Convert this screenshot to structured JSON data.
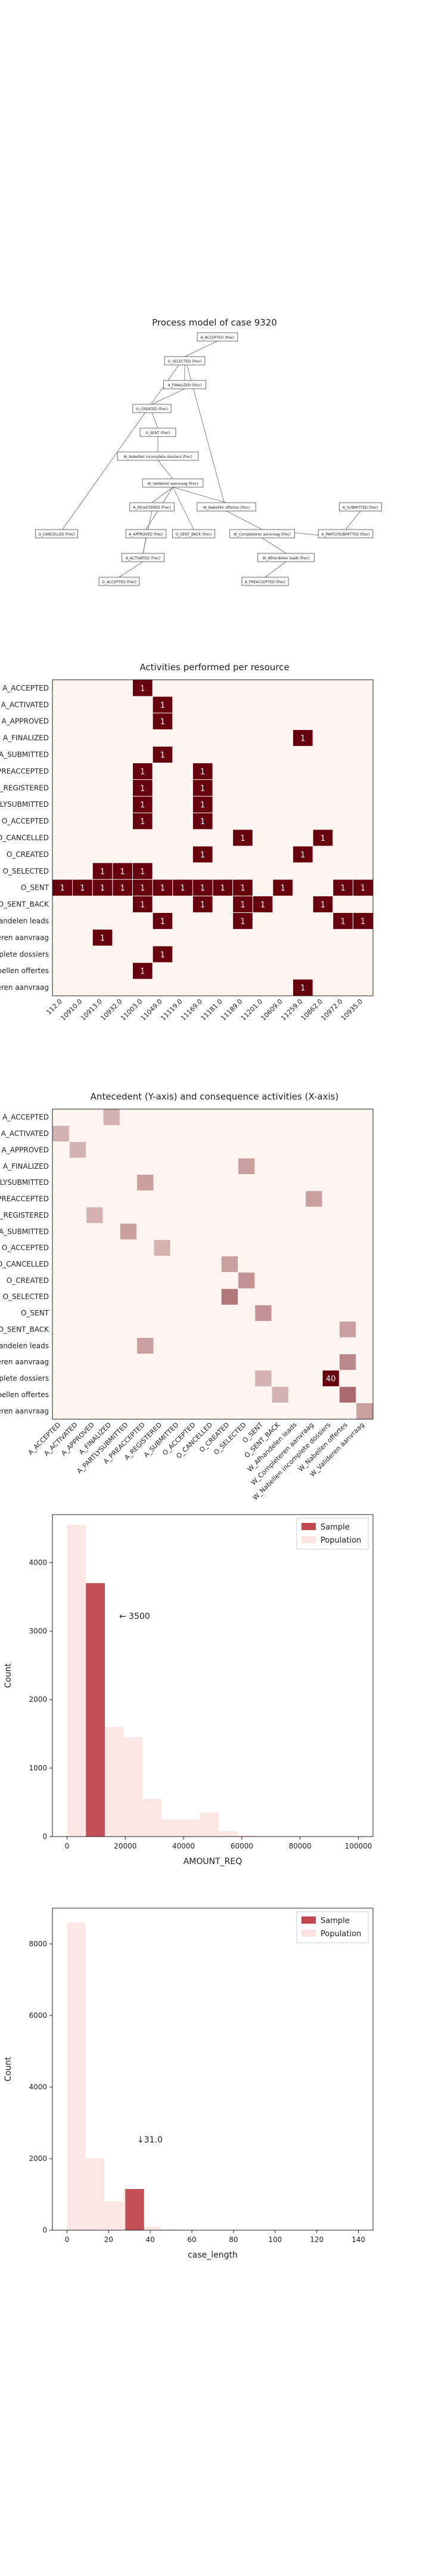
{
  "process_model": {
    "title": "Process model of case 9320",
    "nodes": [
      {
        "id": "accepted",
        "label": "A_ACCEPTED (frec)"
      },
      {
        "id": "selected",
        "label": "O_SELECTED (frec)"
      },
      {
        "id": "finalized",
        "label": "A_FINALIZED (frec)"
      },
      {
        "id": "created",
        "label": "O_CREATED (frec)"
      },
      {
        "id": "sent",
        "label": "O_SENT (frec)"
      },
      {
        "id": "wvo",
        "label": "W_Nabellen incomplete dossiers (frec)"
      },
      {
        "id": "wna",
        "label": "W_Valideren aanvraag (frec)"
      },
      {
        "id": "registered",
        "label": "A_REGISTERED (frec)"
      },
      {
        "id": "wno",
        "label": "W_Nabellen offertes (frec)"
      },
      {
        "id": "submitted",
        "label": "A_SUBMITTED (frec)"
      },
      {
        "id": "cancelled",
        "label": "O_CANCELLED (frec)"
      },
      {
        "id": "approved",
        "label": "A_APPROVED (frec)"
      },
      {
        "id": "sentback",
        "label": "O_SENT_BACK (frec)"
      },
      {
        "id": "wcompl",
        "label": "W_Completeren aanvraag (frec)"
      },
      {
        "id": "partly",
        "label": "A_PARTLYSUBMITTED (frec)"
      },
      {
        "id": "activated",
        "label": "A_ACTIVATED (frec)"
      },
      {
        "id": "wafh",
        "label": "W_Afhandelen leads (frec)"
      },
      {
        "id": "oacc",
        "label": "O_ACCEPTED (frec)"
      },
      {
        "id": "preaccepted",
        "label": "A_PREACCEPTED (frec)"
      }
    ]
  },
  "heatmap_resources": {
    "title": "Activities performed per resource",
    "chart_data": {
      "type": "heatmap",
      "title": "Activities performed per resource",
      "rows": [
        "A_ACCEPTED",
        "A_ACTIVATED",
        "A_APPROVED",
        "A_FINALIZED",
        "A_SUBMITTED",
        "A_PREACCEPTED",
        "A_REGISTERED",
        "A_PARTLYSUBMITTED",
        "O_ACCEPTED",
        "O_CANCELLED",
        "O_CREATED",
        "O_SELECTED",
        "O_SENT",
        "O_SENT_BACK",
        "W_Afhandelen leads",
        "W_Completeren aanvraag",
        "W_Nabellen incomplete dossiers",
        "W_Nabellen offertes",
        "W_Valideren aanvraag"
      ],
      "columns": [
        "112.0",
        "10910.0",
        "10913.0",
        "10932.0",
        "11003.0",
        "11049.0",
        "11119.0",
        "11169.0",
        "11181.0",
        "11189.0",
        "11201.0",
        "10609.0",
        "11259.0",
        "10862.0",
        "10972.0",
        "10935.0"
      ],
      "cells": [
        [
          0,
          4,
          1
        ],
        [
          1,
          5,
          1
        ],
        [
          2,
          5,
          1
        ],
        [
          3,
          12,
          1
        ],
        [
          4,
          5,
          1
        ],
        [
          5,
          4,
          1
        ],
        [
          5,
          7,
          1
        ],
        [
          6,
          4,
          1
        ],
        [
          6,
          7,
          1
        ],
        [
          7,
          4,
          1
        ],
        [
          7,
          7,
          1
        ],
        [
          8,
          4,
          1
        ],
        [
          8,
          7,
          1
        ],
        [
          9,
          9,
          1
        ],
        [
          9,
          13,
          1
        ],
        [
          10,
          7,
          1
        ],
        [
          10,
          12,
          1
        ],
        [
          11,
          2,
          1
        ],
        [
          12,
          0,
          1
        ],
        [
          12,
          1,
          1
        ],
        [
          12,
          2,
          1
        ],
        [
          12,
          3,
          1
        ],
        [
          12,
          4,
          1
        ],
        [
          12,
          5,
          1
        ],
        [
          12,
          6,
          1
        ],
        [
          12,
          7,
          1
        ],
        [
          12,
          8,
          1
        ],
        [
          12,
          9,
          1
        ],
        [
          12,
          11,
          1
        ],
        [
          12,
          14,
          1
        ],
        [
          12,
          15,
          1
        ],
        [
          13,
          4,
          1
        ],
        [
          13,
          7,
          1
        ],
        [
          13,
          9,
          1
        ],
        [
          13,
          10,
          1
        ],
        [
          13,
          13,
          1
        ],
        [
          14,
          5,
          1
        ],
        [
          14,
          9,
          1
        ],
        [
          14,
          14,
          1
        ],
        [
          14,
          15,
          1
        ],
        [
          15,
          2,
          1
        ],
        [
          16,
          5,
          1
        ],
        [
          17,
          4,
          1
        ],
        [
          18,
          12,
          1
        ],
        [
          11,
          3,
          1
        ],
        [
          11,
          4,
          1
        ]
      ]
    }
  },
  "heatmap_antecedent": {
    "title": "Antecedent (Y-axis) and consequence activities (X-axis)",
    "chart_data": {
      "type": "heatmap",
      "title": "Antecedent (Y-axis) and consequence activities (X-axis)",
      "rows": [
        "A_ACCEPTED",
        "A_ACTIVATED",
        "A_APPROVED",
        "A_FINALIZED",
        "A_PARTLYSUBMITTED",
        "A_PREACCEPTED",
        "A_REGISTERED",
        "A_SUBMITTED",
        "O_ACCEPTED",
        "O_CANCELLED",
        "O_CREATED",
        "O_SELECTED",
        "O_SENT",
        "O_SENT_BACK",
        "W_Afhandelen leads",
        "W_Completeren aanvraag",
        "W_Nabellen incomplete dossiers",
        "W_Nabellen offertes",
        "W_Valideren aanvraag"
      ],
      "columns": [
        "A_ACCEPTED",
        "A_ACTIVATED",
        "A_APPROVED",
        "A_FINALIZED",
        "A_PARTLYSUBMITTED",
        "A_PREACCEPTED",
        "A_REGISTERED",
        "A_SUBMITTED",
        "O_ACCEPTED",
        "O_CANCELLED",
        "O_CREATED",
        "O_SELECTED",
        "O_SENT",
        "O_SENT_BACK",
        "W_Afhandelen leads",
        "W_Completeren aanvraag",
        "W_Nabellen incomplete dossiers",
        "W_Nabellen offertes",
        "W_Valideren aanvraag"
      ],
      "cells": [
        [
          16,
          16,
          40
        ],
        [
          17,
          17,
          8
        ],
        [
          11,
          10,
          6
        ],
        [
          15,
          17,
          4
        ],
        [
          12,
          12,
          3
        ],
        [
          10,
          11,
          3
        ],
        [
          4,
          5,
          2
        ],
        [
          5,
          15,
          2
        ],
        [
          14,
          5,
          2
        ],
        [
          3,
          11,
          2
        ],
        [
          7,
          4,
          2
        ],
        [
          9,
          10,
          2
        ],
        [
          13,
          17,
          2
        ],
        [
          18,
          18,
          2
        ],
        [
          0,
          3,
          1
        ],
        [
          1,
          0,
          1
        ],
        [
          2,
          1,
          1
        ],
        [
          6,
          2,
          1
        ],
        [
          8,
          6,
          1
        ],
        [
          16,
          12,
          1
        ],
        [
          17,
          13,
          1
        ]
      ],
      "labeled_values": [
        40
      ]
    }
  },
  "hist_amount": {
    "chart_data": {
      "type": "bar",
      "xlabel": "AMOUNT_REQ",
      "ylabel": "Count",
      "xlim": [
        -5000,
        105000
      ],
      "ylim": [
        0,
        4700
      ],
      "xticks": [
        "0",
        "20000",
        "40000",
        "60000",
        "80000",
        "100000"
      ],
      "yticks": [
        "0",
        "1000",
        "2000",
        "3000",
        "4000"
      ],
      "legend": "top-right",
      "annotation": "← 3500",
      "series": [
        {
          "name": "Sample",
          "color": "#c0474f",
          "bins": [
            [
              6500,
              13000,
              3700
            ]
          ]
        },
        {
          "name": "Population",
          "color": "#fde3e1",
          "bins": [
            [
              0,
              6500,
              4550
            ],
            [
              6500,
              13000,
              3700
            ],
            [
              13000,
              19500,
              1600
            ],
            [
              19500,
              26000,
              1450
            ],
            [
              26000,
              32500,
              550
            ],
            [
              32500,
              39000,
              250
            ],
            [
              39000,
              45500,
              250
            ],
            [
              45500,
              52000,
              350
            ],
            [
              52000,
              58500,
              80
            ],
            [
              58500,
              65000,
              20
            ]
          ]
        }
      ]
    }
  },
  "hist_length": {
    "chart_data": {
      "type": "bar",
      "xlabel": "case_length",
      "ylabel": "Count",
      "xlim": [
        -7,
        147
      ],
      "ylim": [
        0,
        9000
      ],
      "xticks": [
        "0",
        "20",
        "40",
        "60",
        "80",
        "100",
        "120",
        "140"
      ],
      "yticks": [
        "0",
        "2000",
        "4000",
        "6000",
        "8000"
      ],
      "legend": "top-right",
      "annotation": "↓31.0",
      "series": [
        {
          "name": "Sample",
          "color": "#c0474f",
          "bins": [
            [
              28,
              37,
              1150
            ]
          ]
        },
        {
          "name": "Population",
          "color": "#fde3e1",
          "bins": [
            [
              0,
              9,
              8600
            ],
            [
              9,
              18,
              2000
            ],
            [
              18,
              27,
              800
            ],
            [
              27,
              36,
              1150
            ],
            [
              36,
              45,
              100
            ],
            [
              45,
              54,
              30
            ]
          ]
        }
      ]
    }
  }
}
